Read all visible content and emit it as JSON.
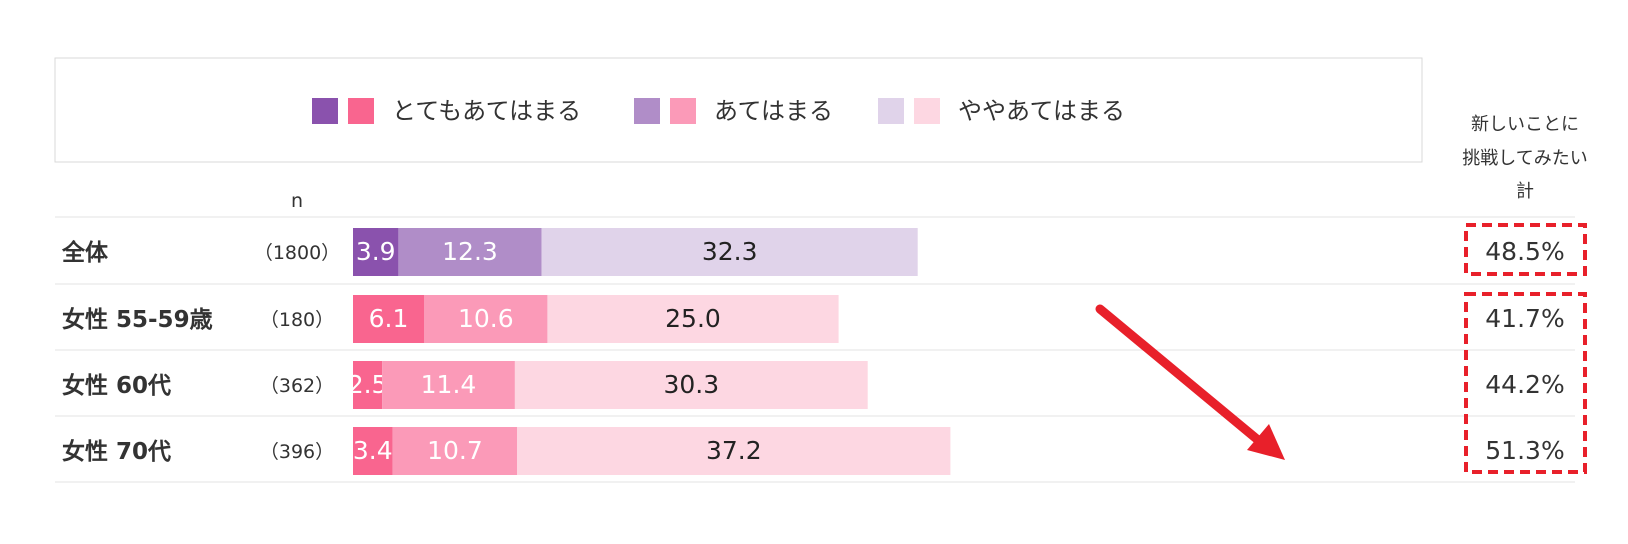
{
  "chart_data": {
    "type": "bar",
    "stacked": true,
    "legend": [
      {
        "label": "とてもあてはまる",
        "colors": [
          "#8a52ad",
          "#f9658f"
        ]
      },
      {
        "label": "あてはまる",
        "colors": [
          "#b08dc8",
          "#fb9ab8"
        ]
      },
      {
        "label": "ややあてはまる",
        "colors": [
          "#e0d3ea",
          "#fdd7e2"
        ]
      }
    ],
    "n_header": "n",
    "total_header": [
      "新しいことに",
      "挑戦してみたい",
      "計"
    ],
    "rows": [
      {
        "label": "全体",
        "n": "（1800）",
        "values": [
          3.9,
          12.3,
          32.3
        ],
        "labels": [
          "3.9",
          "12.3",
          "32.3"
        ],
        "total": "48.5%",
        "colors": [
          "#8a52ad",
          "#b08dc8",
          "#e0d3ea"
        ],
        "label_colors": [
          "#ffffff",
          "#ffffff",
          "#222222"
        ]
      },
      {
        "label": "女性 55-59歳",
        "n": "（180）",
        "values": [
          6.1,
          10.6,
          25.0
        ],
        "labels": [
          "6.1",
          "10.6",
          "25.0"
        ],
        "total": "41.7%",
        "colors": [
          "#f9658f",
          "#fb9ab8",
          "#fdd7e2"
        ],
        "label_colors": [
          "#ffffff",
          "#ffffff",
          "#222222"
        ]
      },
      {
        "label": "女性 60代",
        "n": "（362）",
        "values": [
          2.5,
          11.4,
          30.3
        ],
        "labels": [
          "2.5",
          "11.4",
          "30.3"
        ],
        "total": "44.2%",
        "colors": [
          "#f9658f",
          "#fb9ab8",
          "#fdd7e2"
        ],
        "label_colors": [
          "#ffffff",
          "#ffffff",
          "#222222"
        ]
      },
      {
        "label": "女性 70代",
        "n": "（396）",
        "values": [
          3.4,
          10.7,
          37.2
        ],
        "labels": [
          "3.4",
          "10.7",
          "37.2"
        ],
        "total": "51.3%",
        "colors": [
          "#f9658f",
          "#fb9ab8",
          "#fdd7e2"
        ],
        "label_colors": [
          "#ffffff",
          "#ffffff",
          "#222222"
        ]
      }
    ],
    "highlight_color": "#e8202a"
  }
}
